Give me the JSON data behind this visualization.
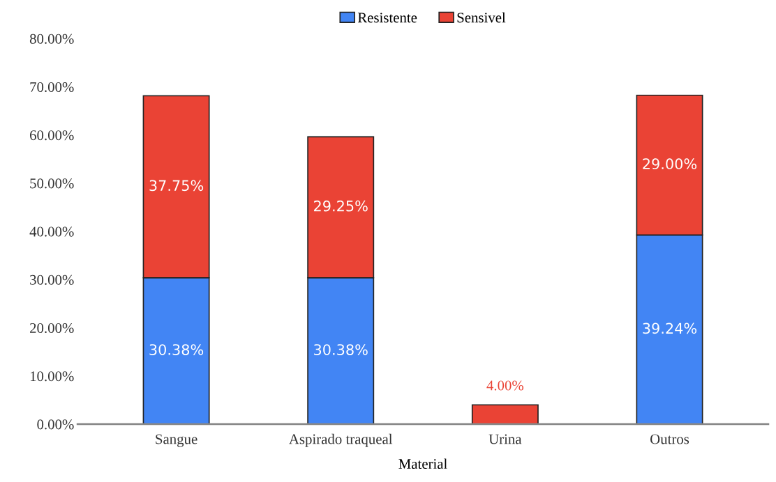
{
  "chart_data": {
    "type": "bar",
    "stacked": true,
    "xlabel": "Material",
    "categories": [
      "Sangue",
      "Aspirado traqueal",
      "Urina",
      "Outros"
    ],
    "series": [
      {
        "name": "Resistente",
        "color": "#4285f4",
        "values": [
          30.38,
          30.38,
          0,
          39.24
        ],
        "value_labels": [
          "30.38%",
          "30.38%",
          null,
          "39.24%"
        ]
      },
      {
        "name": "Sensivel",
        "color": "#ea4335",
        "values": [
          37.75,
          29.25,
          4.0,
          29.0
        ],
        "value_labels": [
          "37.75%",
          "29.25%",
          "4.00%",
          "29.00%"
        ]
      }
    ],
    "ylim": [
      0,
      80
    ],
    "yticks": [
      {
        "value": 0,
        "label": "0.00%"
      },
      {
        "value": 10,
        "label": "10.00%"
      },
      {
        "value": 20,
        "label": "20.00%"
      },
      {
        "value": 30,
        "label": "30.00%"
      },
      {
        "value": 40,
        "label": "40.00%"
      },
      {
        "value": 50,
        "label": "50.00%"
      },
      {
        "value": 60,
        "label": "60.00%"
      },
      {
        "value": 70,
        "label": "70.00%"
      },
      {
        "value": 80,
        "label": "80.00%"
      }
    ],
    "grid": false,
    "legend": "top"
  }
}
